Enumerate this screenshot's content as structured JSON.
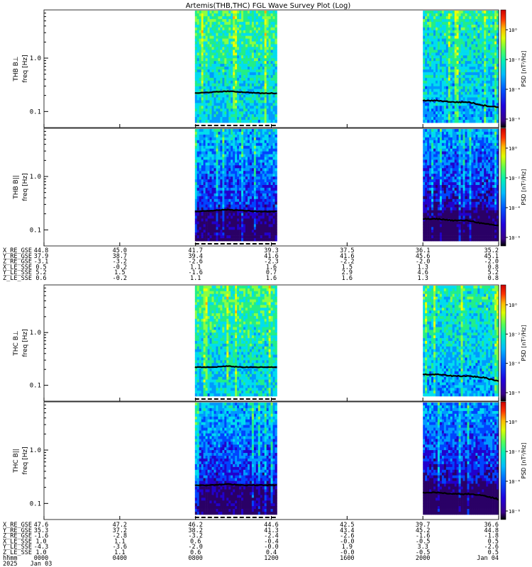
{
  "title": "Artemis(THB,THC) FGL Wave Survey Plot (Log)",
  "colorbar_label": "PSD [nT²/Hz]",
  "colors": {
    "spectrogram_scale": [
      "#2a0066",
      "#2200cc",
      "#0044ff",
      "#0099ff",
      "#00ddee",
      "#22ee88",
      "#88ff44",
      "#eeff00",
      "#ffaa00",
      "#ff3300",
      "#cc0000"
    ],
    "trace": "#000000"
  },
  "chart_data": [
    {
      "type": "heatmap",
      "panel_label": "THB B⊥",
      "ylabel": "freq [Hz]",
      "yticks": [
        "1.0",
        "0.1"
      ],
      "cbar_ticks": [
        "10⁰",
        "10⁻²",
        "10⁻⁴",
        "10⁻⁶"
      ],
      "data_segments_hhmm": [
        [
          "0758",
          "1218"
        ],
        [
          "2000",
          "2400"
        ]
      ],
      "level": "high",
      "cyclotron_freq_hz": {
        "seg1": [
          0.22,
          0.23,
          0.24,
          0.23,
          0.22,
          0.22
        ],
        "seg2": [
          0.16,
          0.16,
          0.15,
          0.15,
          0.13,
          0.12
        ]
      }
    },
    {
      "type": "heatmap",
      "panel_label": "THB B||",
      "ylabel": "freq [Hz]",
      "yticks": [
        "1.0",
        "0.1"
      ],
      "cbar_ticks": [
        "10⁰",
        "10⁻²",
        "10⁻⁴",
        "10⁻⁶"
      ],
      "data_segments_hhmm": [
        [
          "0758",
          "1218"
        ],
        [
          "2000",
          "2400"
        ]
      ],
      "level": "low",
      "cyclotron_freq_hz": {
        "seg1": [
          0.22,
          0.23,
          0.24,
          0.23,
          0.22,
          0.22
        ],
        "seg2": [
          0.16,
          0.16,
          0.15,
          0.15,
          0.13,
          0.12
        ]
      }
    },
    {
      "type": "heatmap",
      "panel_label": "THC B⊥",
      "ylabel": "freq [Hz]",
      "yticks": [
        "1.0",
        "0.1"
      ],
      "cbar_ticks": [
        "10⁰",
        "10⁻²",
        "10⁻⁴",
        "10⁻⁶"
      ],
      "data_segments_hhmm": [
        [
          "0758",
          "1218"
        ],
        [
          "2000",
          "2400"
        ]
      ],
      "level": "high",
      "cyclotron_freq_hz": {
        "seg1": [
          0.22,
          0.22,
          0.23,
          0.22,
          0.22,
          0.22
        ],
        "seg2": [
          0.16,
          0.16,
          0.15,
          0.15,
          0.14,
          0.12
        ]
      }
    },
    {
      "type": "heatmap",
      "panel_label": "THC B||",
      "ylabel": "freq [Hz]",
      "yticks": [
        "1.0",
        "0.1"
      ],
      "cbar_ticks": [
        "10⁰",
        "10⁻²",
        "10⁻⁴",
        "10⁻⁶"
      ],
      "data_segments_hhmm": [
        [
          "0758",
          "1218"
        ],
        [
          "2000",
          "2400"
        ]
      ],
      "level": "low",
      "cyclotron_freq_hz": {
        "seg1": [
          0.22,
          0.22,
          0.23,
          0.22,
          0.22,
          0.22
        ],
        "seg2": [
          0.16,
          0.16,
          0.15,
          0.15,
          0.14,
          0.12
        ]
      }
    }
  ],
  "ephemeris_thb": {
    "labels": [
      "X_RE_GSE",
      "Y_RE_GSE",
      "Z_RE_GSE",
      "X_LE_SSE",
      "Y_LE_SSE",
      "Z_LE_SSE"
    ],
    "columns": [
      [
        "44.8",
        "37.9",
        "-3.1",
        "0.5",
        "5.2",
        "0.6"
      ],
      [
        "45.0",
        "38.7",
        "-3.2",
        "-0.2",
        "1.5",
        "-0.2"
      ],
      [
        "41.7",
        "39.4",
        "-2.6",
        "1.1",
        "-1.6",
        "1.1"
      ],
      [
        "39.3",
        "41.6",
        "-2.3",
        "1.6",
        "0.7",
        "1.6"
      ],
      [
        "37.5",
        "41.6",
        "-2.2",
        "1.5",
        "2.9",
        "1.6"
      ],
      [
        "36.1",
        "45.6",
        "-2.0",
        "1.3",
        "4.6",
        "1.3"
      ],
      [
        "35.2",
        "45.1",
        "-2.0",
        "0.8",
        "5.2",
        "0.8"
      ]
    ]
  },
  "ephemeris_thc": {
    "labels": [
      "X_RE_GSE",
      "Y_RE_GSE",
      "Z_RE_GSE",
      "X_LE_SSE",
      "Y_LE_SSE",
      "Z_LE_SSE"
    ],
    "columns": [
      [
        "47.6",
        "35.3",
        "-1.6",
        "1.0",
        "-4.3",
        "1.0"
      ],
      [
        "47.2",
        "37.2",
        "-2.8",
        "1.1",
        "-3.6",
        "1.1"
      ],
      [
        "46.2",
        "38.2",
        "-3.2",
        "0.6",
        "-2.0",
        "0.6"
      ],
      [
        "44.6",
        "41.3",
        "-2.4",
        "-0.4",
        "-0.0",
        "0.4"
      ],
      [
        "42.5",
        "43.4",
        "-2.6",
        "-0.0",
        "1.9",
        "-0.0"
      ],
      [
        "39.7",
        "45.2",
        "-1.6",
        "-0.5",
        "3.3",
        "-0.5"
      ],
      [
        "36.6",
        "44.8",
        "-1.8",
        "0.5",
        "-2.6",
        "0.5"
      ]
    ]
  },
  "time_axis": {
    "row_labels": [
      "hhmm",
      "2025"
    ],
    "ticks": [
      "0000",
      "0400",
      "0800",
      "1200",
      "1600",
      "2000",
      "Jan 04"
    ],
    "date_labels": [
      "Jan 03"
    ]
  }
}
